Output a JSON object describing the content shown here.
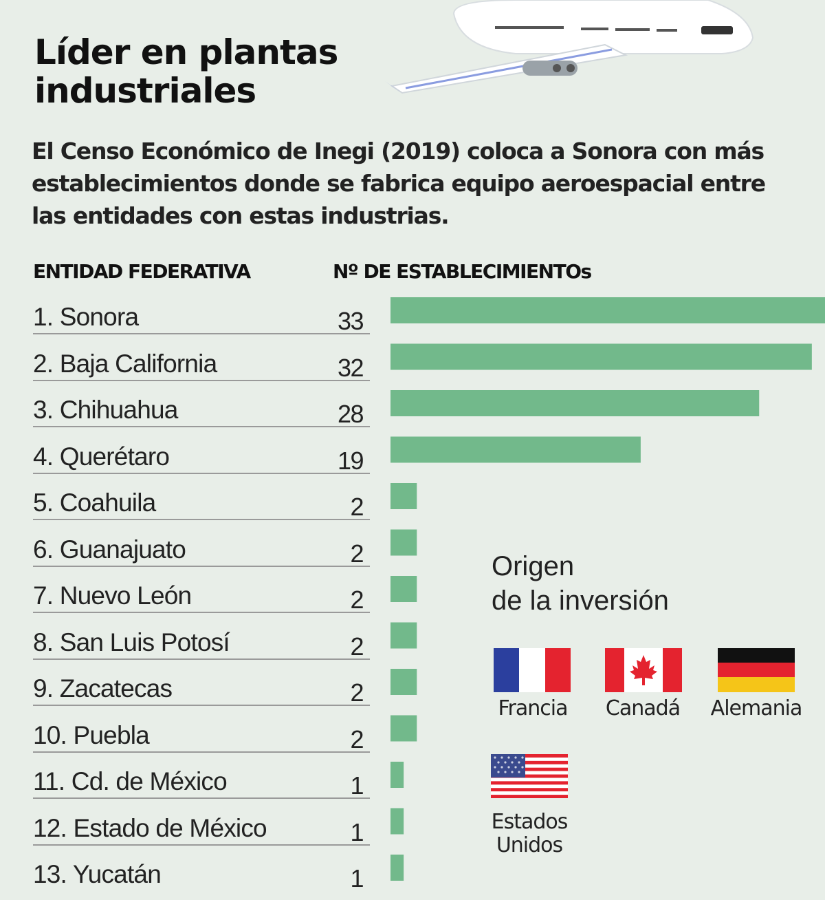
{
  "title": "Líder en plantas industriales",
  "subtitle": "El Censo Económico de Inegi (2019) coloca a Sonora con más establecimientos donde se fabrica equipo aeroespacial entre las entidades con estas industrias.",
  "headers": {
    "entity": "ENTIDAD FEDERATIVA",
    "count": "Nº DE ESTABLECIMIENTOs"
  },
  "rows": [
    {
      "label": "1. Sonora",
      "value": "33"
    },
    {
      "label": "2. Baja California",
      "value": "32"
    },
    {
      "label": "3. Chihuahua",
      "value": "28"
    },
    {
      "label": "4. Querétaro",
      "value": "19"
    },
    {
      "label": "5.  Coahuila",
      "value": "2"
    },
    {
      "label": "6.  Guanajuato",
      "value": "2"
    },
    {
      "label": "7. Nuevo León",
      "value": "2"
    },
    {
      "label": "8. San Luis Potosí",
      "value": "2"
    },
    {
      "label": "9. Zacatecas",
      "value": "2"
    },
    {
      "label": "10. Puebla",
      "value": "2"
    },
    {
      "label": "11. Cd. de México",
      "value": "1"
    },
    {
      "label": "12. Estado de México",
      "value": "1"
    },
    {
      "label": "13. Yucatán",
      "value": "1"
    }
  ],
  "legend": {
    "title_line1": "Origen",
    "title_line2": "de la inversión",
    "flags": [
      {
        "label": "Francia",
        "icon": "france-flag-icon"
      },
      {
        "label": "Canadá",
        "icon": "canada-flag-icon"
      },
      {
        "label": "Alemania",
        "icon": "germany-flag-icon"
      },
      {
        "label_line1": "Estados",
        "label_line2": "Unidos",
        "icon": "usa-flag-icon"
      }
    ]
  },
  "chart_data": {
    "type": "bar",
    "orientation": "horizontal",
    "categories": [
      "Sonora",
      "Baja California",
      "Chihuahua",
      "Querétaro",
      "Coahuila",
      "Guanajuato",
      "Nuevo León",
      "San Luis Potosí",
      "Zacatecas",
      "Puebla",
      "Cd. de México",
      "Estado de México",
      "Yucatán"
    ],
    "values": [
      33,
      32,
      28,
      19,
      2,
      2,
      2,
      2,
      2,
      2,
      1,
      1,
      1
    ],
    "xlim": [
      0,
      33
    ],
    "bar_color": "#72b98b",
    "grid": false
  },
  "colors": {
    "background": "#e8eee8",
    "bar": "#72b98b"
  }
}
